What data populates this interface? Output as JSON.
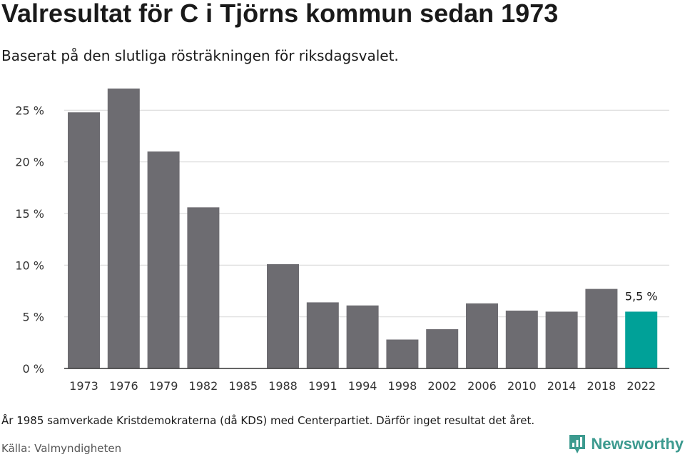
{
  "title": "Valresultat för C i Tjörns kommun sedan 1973",
  "subtitle": "Baserat på den slutliga rösträkningen för riksdagsvalet.",
  "footnote": "År 1985 samverkade Kristdemokraterna (då KDS) med Centerpartiet. Därför inget resultat det året.",
  "source": "Källa: Valmyndigheten",
  "brand": {
    "name": "Newsworthy",
    "icon": "newsworthy-logo-icon",
    "color": "#3c9a8f"
  },
  "colors": {
    "bar": "#6d6c71",
    "highlight": "#00a198",
    "grid": "#dddddd",
    "axis": "#333333"
  },
  "chart_data": {
    "type": "bar",
    "categories": [
      "1973",
      "1976",
      "1979",
      "1982",
      "1985",
      "1988",
      "1991",
      "1994",
      "1998",
      "2002",
      "2006",
      "2010",
      "2014",
      "2018",
      "2022"
    ],
    "values": [
      24.8,
      27.1,
      21.0,
      15.6,
      null,
      10.1,
      6.4,
      6.1,
      2.8,
      3.8,
      6.3,
      5.6,
      5.5,
      7.7,
      5.5
    ],
    "yticks": [
      0,
      5,
      10,
      15,
      20,
      25
    ],
    "ytick_labels": [
      "0 %",
      "5 %",
      "10 %",
      "15 %",
      "20 %",
      "25 %"
    ],
    "ylim": [
      0,
      27.1
    ],
    "grid": true,
    "highlight_category": "2022",
    "annotations": [
      {
        "category": "2022",
        "text": "5,5 %"
      }
    ]
  }
}
